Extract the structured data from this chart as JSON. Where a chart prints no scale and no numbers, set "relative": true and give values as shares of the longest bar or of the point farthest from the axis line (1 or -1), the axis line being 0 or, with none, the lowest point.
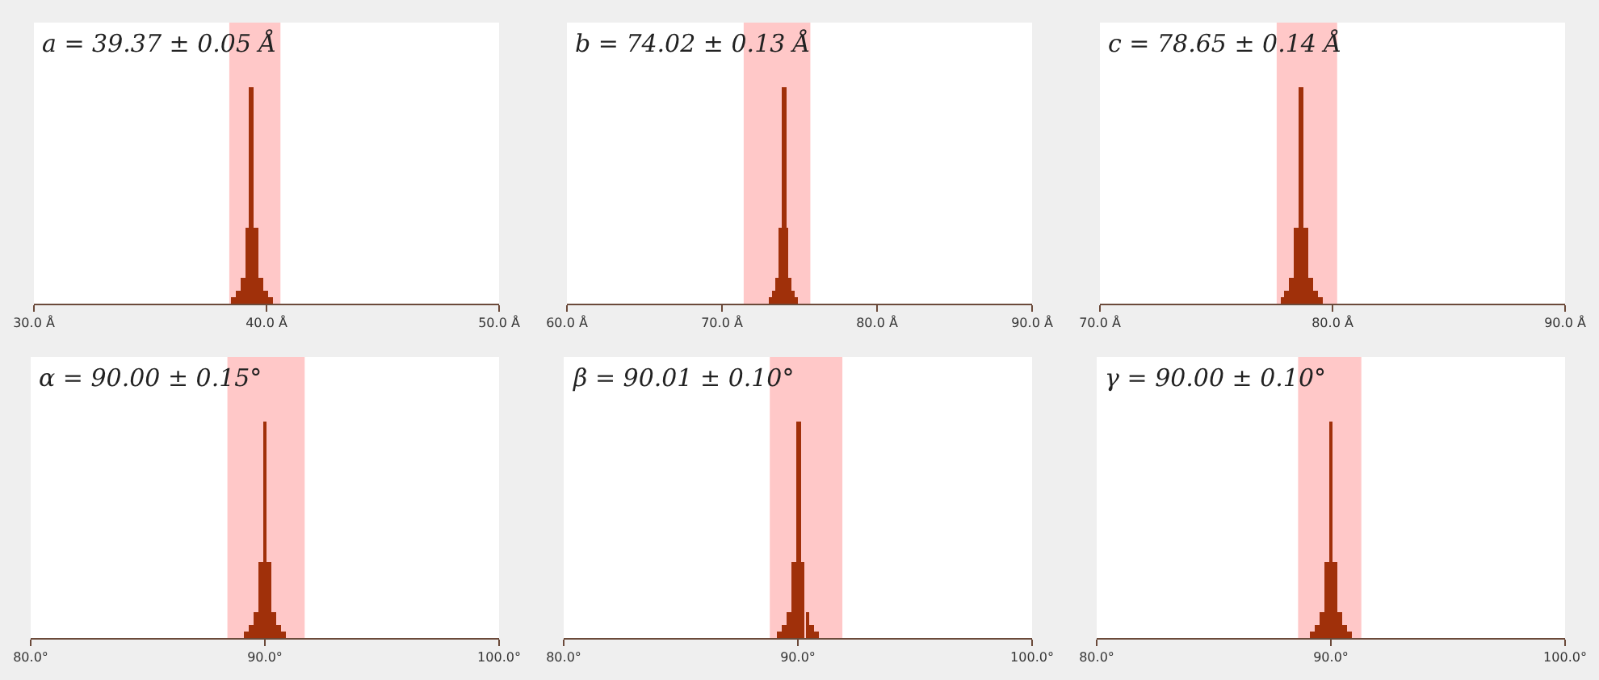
{
  "chart_data": [
    {
      "type": "bar",
      "title": "a = 39.37 ± 0.05 Å",
      "relative": true,
      "color": "#a0300a",
      "tick_labels": "x",
      "grid": false,
      "xlim": [
        30,
        50
      ],
      "xticks": [
        {
          "value": 30,
          "label": "30.0 Å"
        },
        {
          "value": 40,
          "label": "40.0 Å"
        },
        {
          "value": 50,
          "label": "50.0 Å"
        }
      ],
      "x": [
        38.57,
        38.77,
        38.97,
        39.17,
        39.37,
        39.57,
        39.77,
        39.97,
        40.17
      ],
      "values": [
        0.03,
        0.06,
        0.12,
        0.35,
        1,
        0.35,
        0.12,
        0.06,
        0.03
      ],
      "bands": [
        {
          "axis": "x",
          "from": 38.4,
          "to": 40.6,
          "color": "#ffc8c8"
        }
      ]
    },
    {
      "type": "bar",
      "title": "b = 74.02 ± 0.13 Å",
      "relative": true,
      "color": "#a0300a",
      "tick_labels": "x",
      "grid": false,
      "xlim": [
        60,
        90
      ],
      "xticks": [
        {
          "value": 60,
          "label": "60.0 Å"
        },
        {
          "value": 70,
          "label": "70.0 Å"
        },
        {
          "value": 80,
          "label": "80.0 Å"
        },
        {
          "value": 90,
          "label": "90.0 Å"
        }
      ],
      "x": [
        73.22,
        73.42,
        73.62,
        73.82,
        74.02,
        74.22,
        74.42,
        74.62,
        74.82
      ],
      "values": [
        0.03,
        0.06,
        0.12,
        0.35,
        1,
        0.35,
        0.12,
        0.06,
        0.03
      ],
      "bands": [
        {
          "axis": "x",
          "from": 71.4,
          "to": 75.7,
          "color": "#ffc8c8"
        }
      ]
    },
    {
      "type": "bar",
      "title": "c = 78.65 ± 0.14 Å",
      "relative": true,
      "color": "#a0300a",
      "tick_labels": "x",
      "grid": false,
      "xlim": [
        70,
        90
      ],
      "xticks": [
        {
          "value": 70,
          "label": "70.0 Å"
        },
        {
          "value": 80,
          "label": "80.0 Å"
        },
        {
          "value": 90,
          "label": "90.0 Å"
        }
      ],
      "x": [
        77.85,
        78.05,
        78.25,
        78.45,
        78.65,
        78.85,
        79.05,
        79.25,
        79.45
      ],
      "values": [
        0.03,
        0.06,
        0.12,
        0.35,
        1,
        0.35,
        0.12,
        0.06,
        0.03
      ],
      "bands": [
        {
          "axis": "x",
          "from": 77.6,
          "to": 80.2,
          "color": "#ffc8c8"
        }
      ]
    },
    {
      "type": "bar",
      "title": "α = 90.00 ± 0.15°",
      "relative": true,
      "color": "#a0300a",
      "tick_labels": "x",
      "grid": false,
      "xlim": [
        80,
        100
      ],
      "xticks": [
        {
          "value": 80,
          "label": "80.0°"
        },
        {
          "value": 90,
          "label": "90.0°"
        },
        {
          "value": 100,
          "label": "100.0°"
        }
      ],
      "x": [
        89.2,
        89.4,
        89.6,
        89.8,
        90.0,
        90.2,
        90.4,
        90.6,
        90.8
      ],
      "values": [
        0.03,
        0.06,
        0.12,
        0.35,
        1,
        0.35,
        0.12,
        0.06,
        0.03
      ],
      "bands": [
        {
          "axis": "x",
          "from": 88.4,
          "to": 91.7,
          "color": "#ffc8c8"
        }
      ]
    },
    {
      "type": "bar",
      "title": "β = 90.01 ± 0.10°",
      "relative": true,
      "color": "#a0300a",
      "tick_labels": "x",
      "grid": false,
      "xlim": [
        80,
        100
      ],
      "xticks": [
        {
          "value": 80,
          "label": "80.0°"
        },
        {
          "value": 90,
          "label": "90.0°"
        },
        {
          "value": 100,
          "label": "100.0°"
        }
      ],
      "x": [
        89.21,
        89.41,
        89.61,
        89.81,
        90.01,
        90.21,
        90.41,
        90.61,
        90.81
      ],
      "values": [
        0.03,
        0.06,
        0.12,
        0.35,
        1,
        0.35,
        0.12,
        0.06,
        0.03
      ],
      "bands": [
        {
          "axis": "x",
          "from": 88.8,
          "to": 91.9,
          "color": "#ffc8c8"
        }
      ]
    },
    {
      "type": "bar",
      "title": "γ = 90.00 ± 0.10°",
      "relative": true,
      "color": "#a0300a",
      "tick_labels": "x",
      "grid": false,
      "xlim": [
        80,
        100
      ],
      "xticks": [
        {
          "value": 80,
          "label": "80.0°"
        },
        {
          "value": 90,
          "label": "90.0°"
        },
        {
          "value": 100,
          "label": "100.0°"
        }
      ],
      "x": [
        89.2,
        89.4,
        89.6,
        89.8,
        90.0,
        90.2,
        90.4,
        90.6,
        90.8
      ],
      "values": [
        0.03,
        0.06,
        0.12,
        0.35,
        1,
        0.35,
        0.12,
        0.06,
        0.03
      ],
      "bands": [
        {
          "axis": "x",
          "from": 88.6,
          "to": 91.3,
          "color": "#ffc8c8"
        }
      ]
    }
  ]
}
